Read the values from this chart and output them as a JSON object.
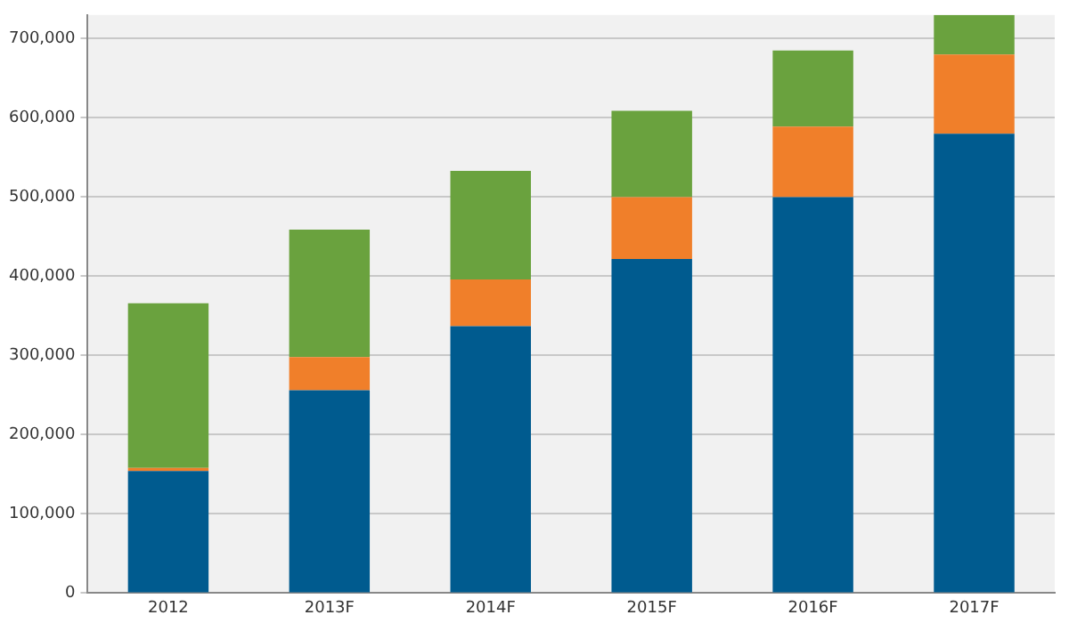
{
  "chart_data": {
    "type": "bar",
    "stacked": true,
    "categories": [
      "2012",
      "2013F",
      "2014F",
      "2015F",
      "2016F",
      "2017F"
    ],
    "series": [
      {
        "color": "#005b8f",
        "values": [
          154000,
          256000,
          337000,
          422000,
          500000,
          580000
        ]
      },
      {
        "color": "#f07f2a",
        "values": [
          4000,
          42000,
          59000,
          78000,
          89000,
          100000
        ]
      },
      {
        "color": "#6aa23e",
        "values": [
          208000,
          161000,
          137000,
          109000,
          96000,
          50000
        ]
      }
    ],
    "ylim": [
      0,
      730000
    ],
    "yticks": [
      {
        "value": 0,
        "label": "0"
      },
      {
        "value": 100000,
        "label": "100,000"
      },
      {
        "value": 200000,
        "label": "200,000"
      },
      {
        "value": 300000,
        "label": "300,000"
      },
      {
        "value": 400000,
        "label": "400,000"
      },
      {
        "value": 500000,
        "label": "500,000"
      },
      {
        "value": 600000,
        "label": "600,000"
      },
      {
        "value": 700000,
        "label": "700,000"
      }
    ],
    "grid": "y",
    "legend": false
  }
}
